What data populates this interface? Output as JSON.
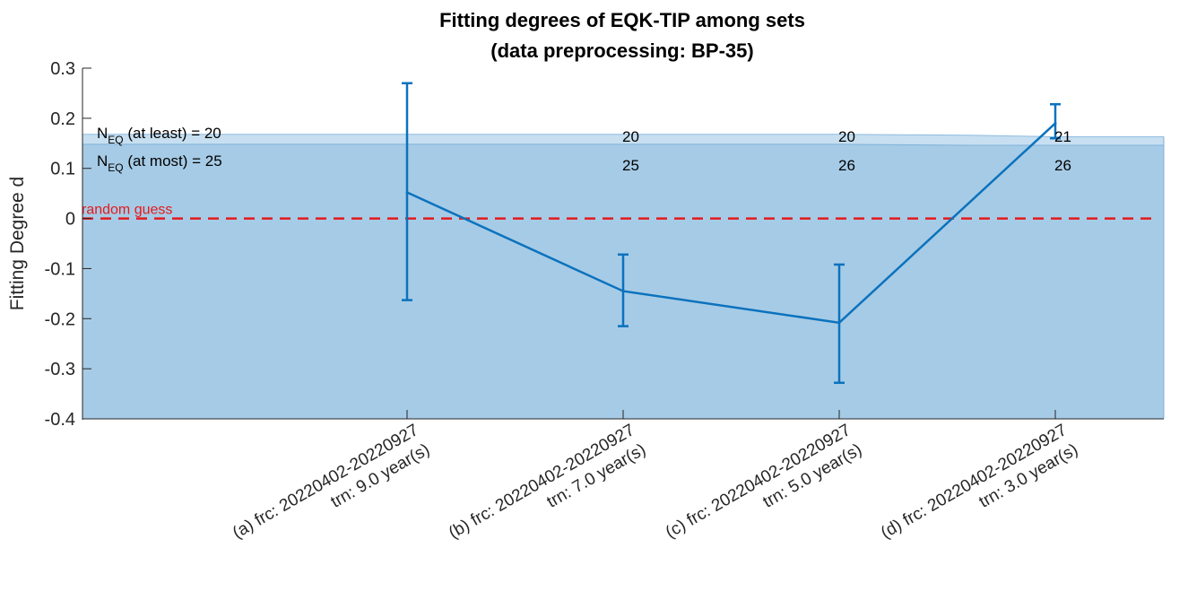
{
  "chart_data": {
    "type": "line",
    "title": [
      "Fitting degrees of EQK-TIP among sets",
      "(data preprocessing: BP-35)"
    ],
    "xlabel": "",
    "ylabel": "Fitting Degree d",
    "ylim": [
      -0.4,
      0.3
    ],
    "yticks": [
      "0.3",
      "0.2",
      "0.1",
      "0",
      "-0.1",
      "-0.2",
      "-0.3",
      "-0.4"
    ],
    "categories": [
      [
        "(a) frc: 20220402-20220927",
        "trn: 9.0 year(s)"
      ],
      [
        "(b) frc: 20220402-20220927",
        "trn: 7.0 year(s)"
      ],
      [
        "(c) frc: 20220402-20220927",
        "trn: 5.0 year(s)"
      ],
      [
        "(d) frc: 20220402-20220927",
        "trn: 3.0 year(s)"
      ]
    ],
    "series": [
      {
        "values": [
          0.052,
          -0.145,
          -0.208,
          0.19
        ],
        "lower": [
          -0.163,
          -0.215,
          -0.328,
          0.16
        ],
        "upper": [
          0.27,
          -0.072,
          -0.092,
          0.228
        ]
      }
    ],
    "bands": {
      "at_least_top": [
        0.168,
        0.168,
        0.168,
        0.166,
        0.163,
        0.163
      ],
      "at_most_top": [
        0.148,
        0.148,
        0.148,
        0.146,
        0.146,
        0.146
      ]
    },
    "n_eq_label_main": "N",
    "n_eq_label_sub": "EQ",
    "n_eq_at_least_text": " (at least) = 20",
    "n_eq_at_most_text": " (at most) = 25",
    "n_eq_at_least": [
      20,
      20,
      20,
      21
    ],
    "n_eq_at_most": [
      25,
      25,
      26,
      26
    ],
    "reference_line": {
      "y": 0,
      "label": "random guess",
      "color": "#e41a1c"
    },
    "colors": {
      "line": "#0b72bd",
      "band_outer": "#c7dff0",
      "band_inner": "#a6cbe6",
      "axis": "#262626"
    },
    "grid": false
  }
}
